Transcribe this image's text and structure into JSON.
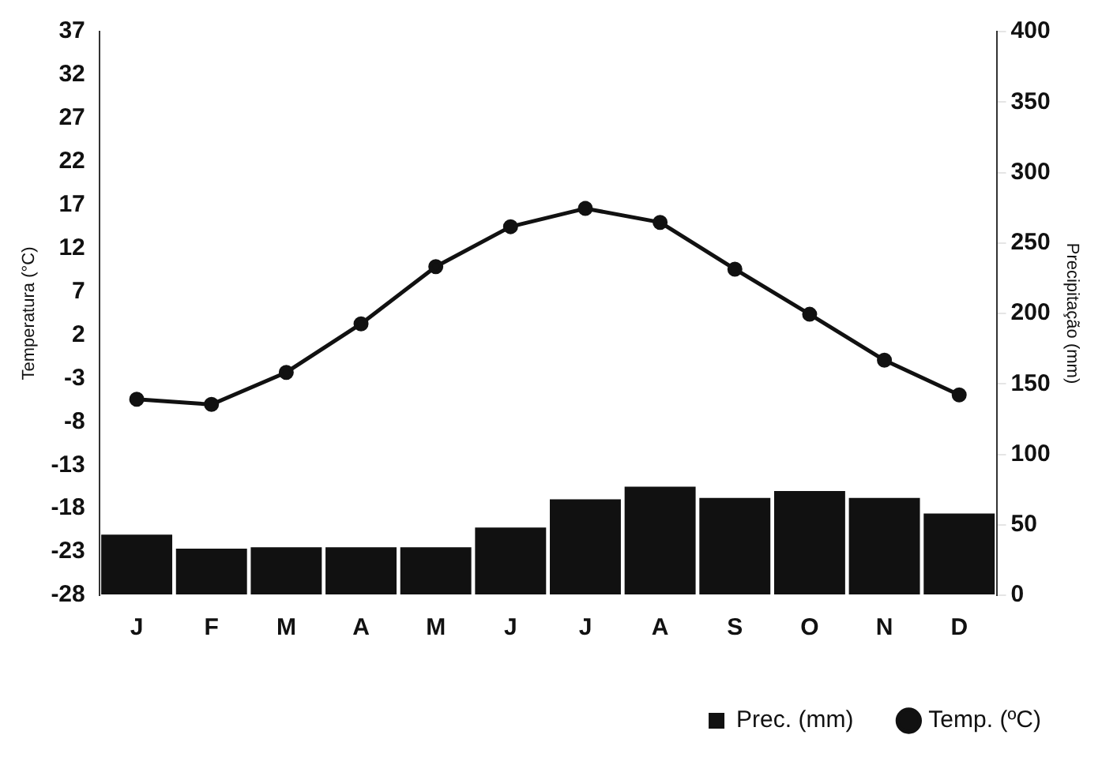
{
  "chart_data": {
    "type": "bar",
    "ylabel": "Temperatura (°C)",
    "y2label": "Precipitação (mm)",
    "categories": [
      "J",
      "F",
      "M",
      "A",
      "M",
      "J",
      "J",
      "A",
      "S",
      "O",
      "N",
      "D"
    ],
    "series": [
      {
        "name": "Prec. (mm)",
        "axis": "y2",
        "color": "#111111",
        "values": [
          43,
          33,
          34,
          34,
          34,
          48,
          68,
          77,
          69,
          74,
          69,
          58
        ]
      },
      {
        "name": "Temp. (ºC)",
        "type": "line",
        "axis": "y",
        "color": "#111111",
        "marker": "circle",
        "line_style": "solid",
        "values": [
          -5.4,
          -6.0,
          -2.3,
          3.3,
          9.9,
          14.5,
          16.6,
          15.0,
          9.6,
          4.4,
          -0.9,
          -4.9
        ]
      }
    ],
    "ylim": [
      -28,
      37
    ],
    "yticks": [
      -28,
      -23,
      -18,
      -13,
      -8,
      -3,
      2,
      7,
      12,
      17,
      22,
      27,
      32,
      37
    ],
    "y2lim": [
      0,
      400
    ],
    "y2ticks": [
      0,
      50,
      100,
      150,
      200,
      250,
      300,
      350,
      400
    ],
    "grid": false,
    "legend": "bottom right"
  }
}
